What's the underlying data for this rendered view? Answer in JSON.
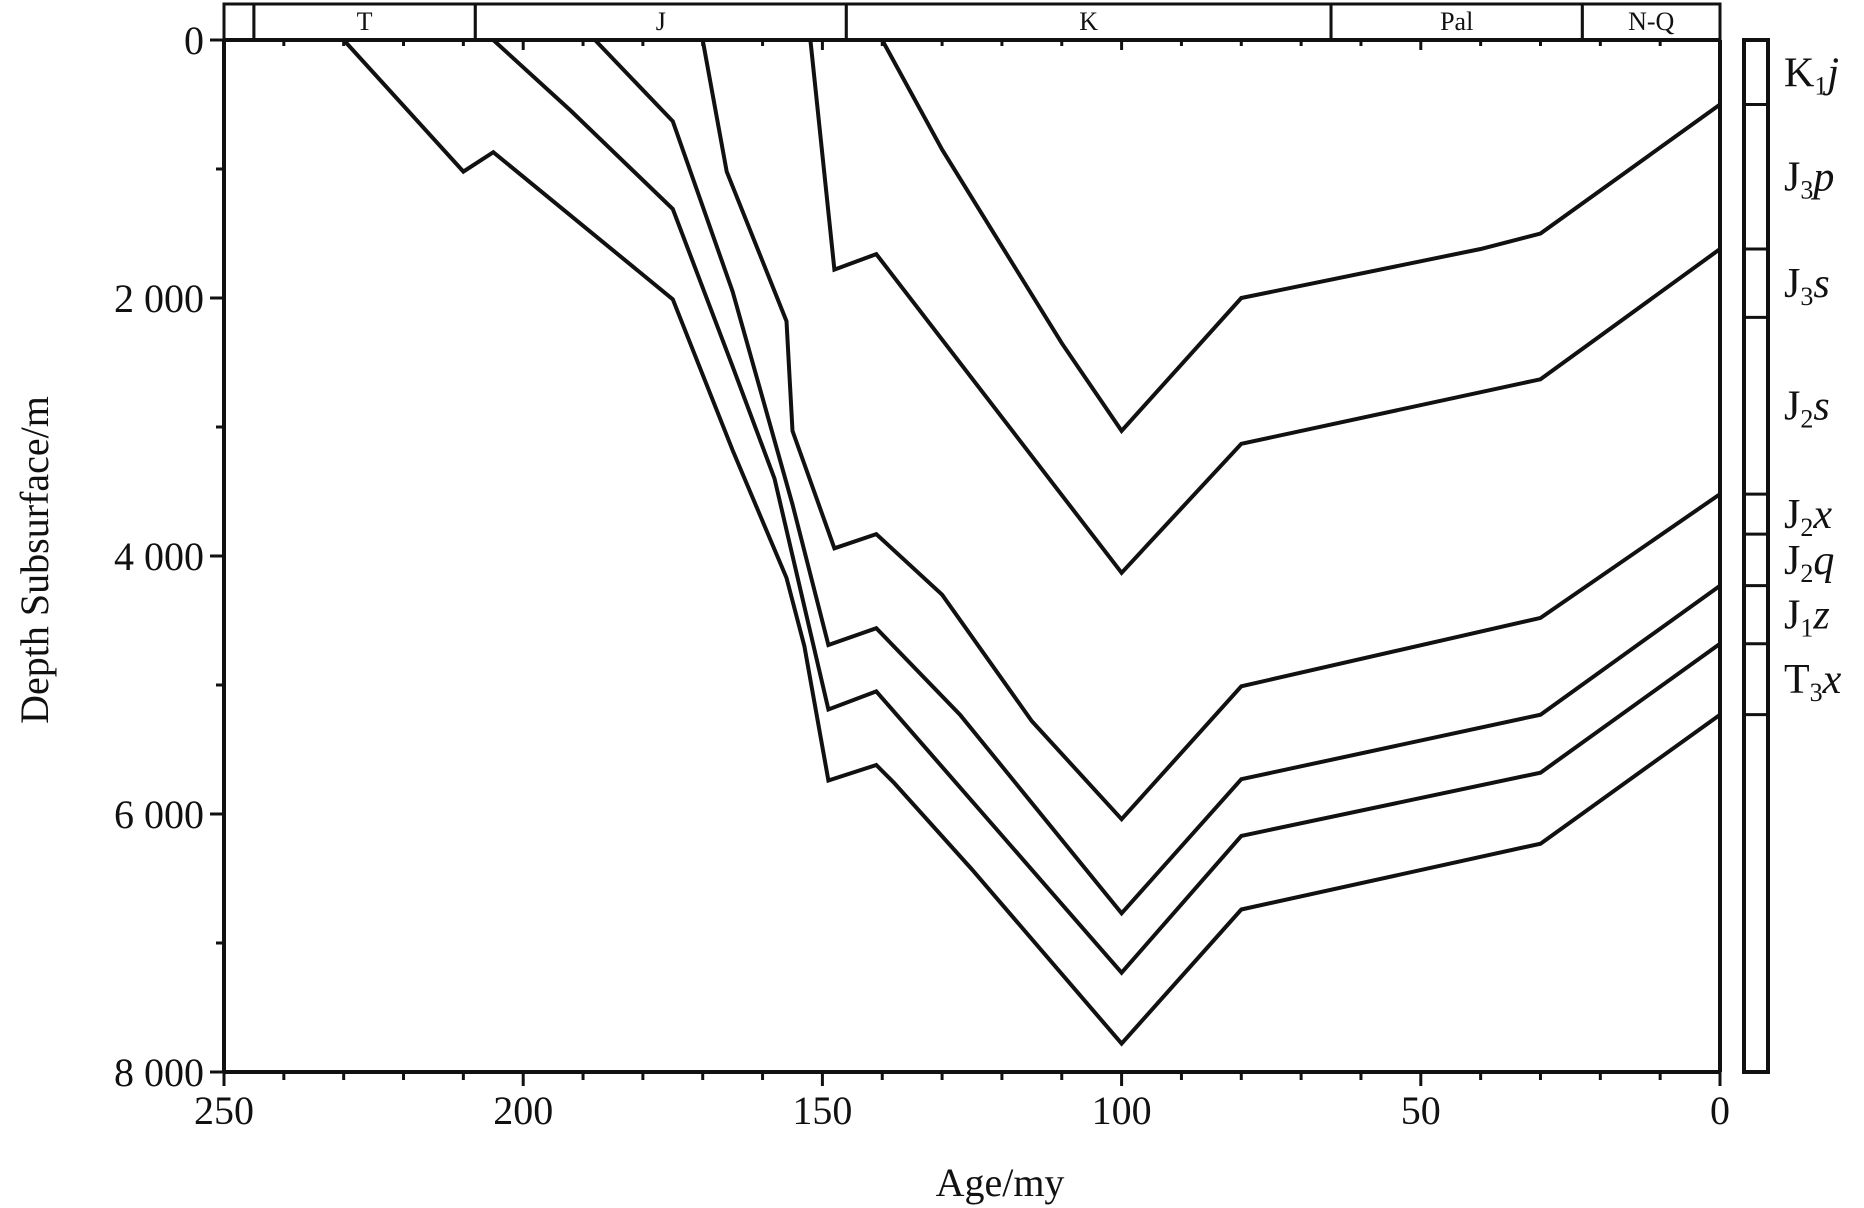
{
  "chart_data": {
    "type": "line",
    "title": "",
    "xlabel": "Age/my",
    "ylabel": "Depth Subsurface/m",
    "xlim": [
      250,
      0
    ],
    "ylim": [
      0,
      8000
    ],
    "x_reversed": true,
    "y_reversed": true,
    "x_ticks": [
      250,
      200,
      150,
      100,
      50,
      0
    ],
    "x_tick_labels": [
      "250",
      "200",
      "150",
      "100",
      "50",
      "0"
    ],
    "x_minor_step": 10,
    "y_ticks": [
      0,
      2000,
      4000,
      6000,
      8000
    ],
    "y_tick_labels": [
      "0",
      "2 000",
      "4 000",
      "6 000",
      "8 000"
    ],
    "y_minor_step": 1000,
    "grid": false,
    "legend": "none",
    "periods": [
      {
        "label": "",
        "start": 250,
        "end": 245
      },
      {
        "label": "T",
        "start": 245,
        "end": 208
      },
      {
        "label": "J",
        "start": 208,
        "end": 146
      },
      {
        "label": "K",
        "start": 146,
        "end": 65
      },
      {
        "label": "Pal",
        "start": 65,
        "end": 23
      },
      {
        "label": "N-Q",
        "start": 23,
        "end": 0
      }
    ],
    "strata": [
      {
        "base": "K",
        "sub": "1",
        "ital": "j",
        "top": 0,
        "bottom": 500
      },
      {
        "base": "J",
        "sub": "3",
        "ital": "p",
        "top": 500,
        "bottom": 1620
      },
      {
        "base": "J",
        "sub": "3",
        "ital": "s",
        "top": 1620,
        "bottom": 2150
      },
      {
        "base": "J",
        "sub": "2",
        "ital": "s",
        "top": 2150,
        "bottom": 3520
      },
      {
        "base": "J",
        "sub": "2",
        "ital": "x",
        "top": 3520,
        "bottom": 3830
      },
      {
        "base": "J",
        "sub": "2",
        "ital": "q",
        "top": 3830,
        "bottom": 4230
      },
      {
        "base": "J",
        "sub": "1",
        "ital": "z",
        "top": 4230,
        "bottom": 4680
      },
      {
        "base": "T",
        "sub": "3",
        "ital": "x",
        "top": 4680,
        "bottom": 5230
      },
      {
        "base": "",
        "sub": "",
        "ital": "",
        "top": 5230,
        "bottom": 8000
      }
    ],
    "series": [
      {
        "points": [
          [
            140,
            0
          ],
          [
            130,
            850
          ],
          [
            110,
            2350
          ],
          [
            100,
            3030
          ],
          [
            80,
            2000
          ],
          [
            40,
            1620
          ],
          [
            30,
            1500
          ],
          [
            12,
            900
          ],
          [
            0,
            500
          ]
        ]
      },
      {
        "points": [
          [
            152,
            0
          ],
          [
            148,
            1780
          ],
          [
            141,
            1660
          ],
          [
            100,
            4130
          ],
          [
            80,
            3130
          ],
          [
            30,
            2630
          ],
          [
            0,
            1620
          ]
        ]
      },
      {
        "points": [
          [
            170,
            0
          ],
          [
            166,
            1020
          ],
          [
            156,
            2180
          ],
          [
            155,
            3030
          ],
          [
            148,
            3940
          ],
          [
            141,
            3830
          ],
          [
            130,
            4300
          ],
          [
            115,
            5280
          ],
          [
            100,
            6040
          ],
          [
            80,
            5010
          ],
          [
            30,
            4480
          ],
          [
            0,
            3520
          ]
        ]
      },
      {
        "points": [
          [
            188,
            0
          ],
          [
            175,
            630
          ],
          [
            165,
            1950
          ],
          [
            155,
            3600
          ],
          [
            149,
            4690
          ],
          [
            141,
            4560
          ],
          [
            127,
            5230
          ],
          [
            100,
            6770
          ],
          [
            80,
            5730
          ],
          [
            30,
            5230
          ],
          [
            0,
            4230
          ]
        ]
      },
      {
        "points": [
          [
            205,
            0
          ],
          [
            192,
            550
          ],
          [
            175,
            1310
          ],
          [
            165,
            2530
          ],
          [
            158,
            3400
          ],
          [
            149,
            5190
          ],
          [
            141,
            5050
          ],
          [
            100,
            7230
          ],
          [
            80,
            6170
          ],
          [
            30,
            5680
          ],
          [
            0,
            4680
          ]
        ]
      },
      {
        "points": [
          [
            230,
            0
          ],
          [
            210,
            1020
          ],
          [
            205,
            870
          ],
          [
            175,
            2010
          ],
          [
            165,
            3180
          ],
          [
            156,
            4170
          ],
          [
            153,
            4700
          ],
          [
            149,
            5740
          ],
          [
            141,
            5620
          ],
          [
            138,
            5760
          ],
          [
            125,
            6430
          ],
          [
            100,
            7780
          ],
          [
            80,
            6740
          ],
          [
            30,
            6230
          ],
          [
            0,
            5230
          ]
        ]
      }
    ]
  }
}
